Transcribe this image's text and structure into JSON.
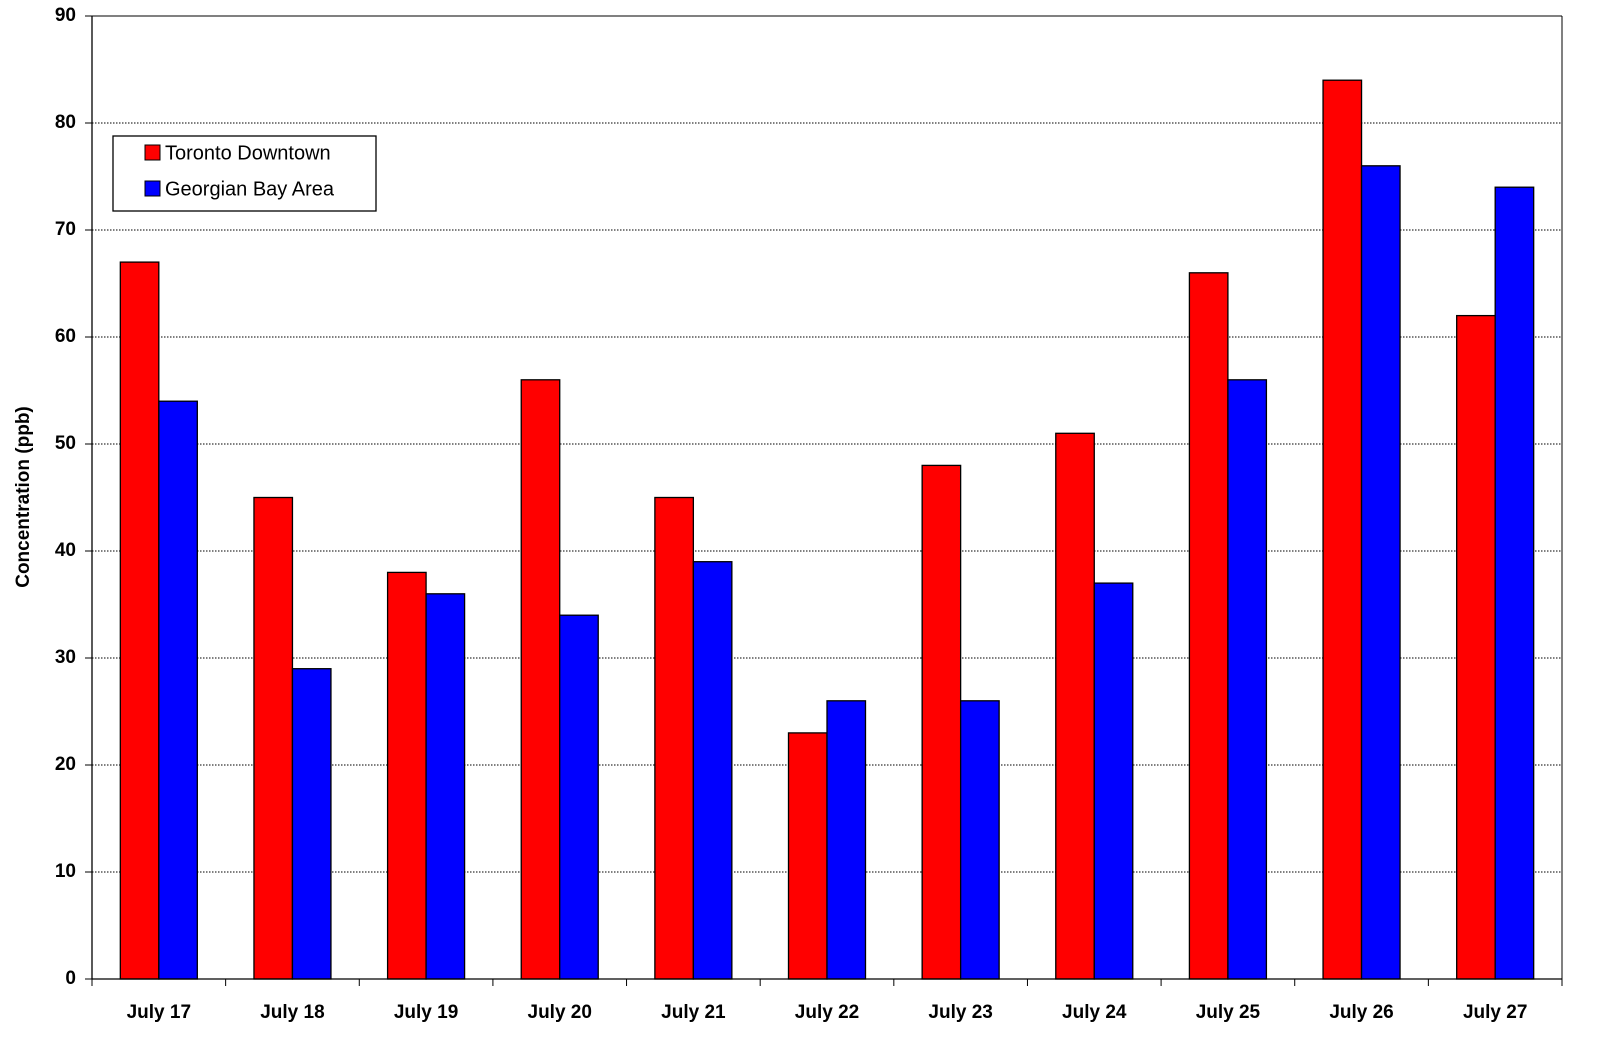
{
  "chart_data": {
    "type": "bar",
    "y_label": "Concentration (ppb)",
    "categories": [
      "July 17",
      "July 18",
      "July 19",
      "July 20",
      "July 21",
      "July 22",
      "July 23",
      "July 24",
      "July 25",
      "July 26",
      "July 27"
    ],
    "series": [
      {
        "name": "Toronto Downtown",
        "color": "#ff0000",
        "values": [
          67,
          45,
          38,
          56,
          45,
          23,
          48,
          51,
          66,
          84,
          62
        ]
      },
      {
        "name": "Georgian Bay Area",
        "color": "#0000ff",
        "values": [
          54,
          29,
          36,
          34,
          39,
          26,
          26,
          37,
          56,
          76,
          74
        ]
      }
    ],
    "ylim": [
      0,
      90
    ],
    "yticks": [
      0,
      10,
      20,
      30,
      40,
      50,
      60,
      70,
      80,
      90
    ],
    "grid": true,
    "legend": "upper left"
  }
}
